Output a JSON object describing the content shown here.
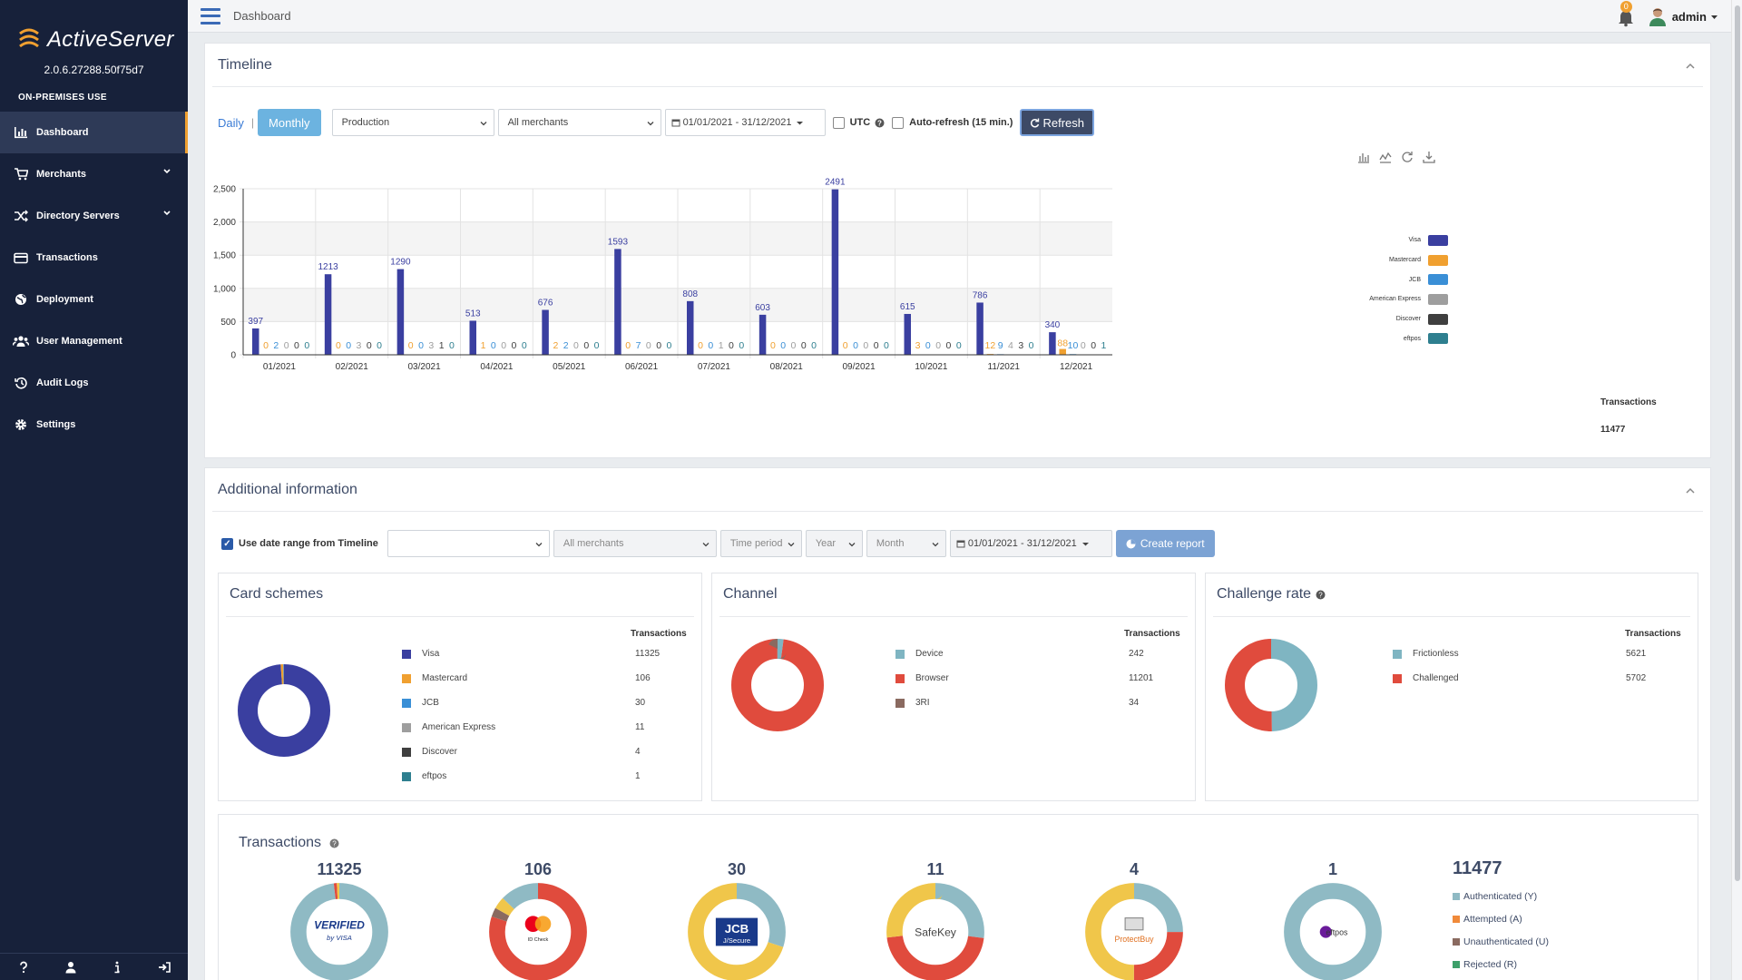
{
  "app": {
    "name": "ActiveServer",
    "version": "2.0.6.27288.50f75d7",
    "license": "ON-PREMISES USE"
  },
  "nav": [
    {
      "label": "Dashboard",
      "icon": "bar-chart-icon",
      "active": true
    },
    {
      "label": "Merchants",
      "icon": "cart-icon",
      "expandable": true
    },
    {
      "label": "Directory Servers",
      "icon": "shuffle-icon",
      "expandable": true
    },
    {
      "label": "Transactions",
      "icon": "credit-card-icon"
    },
    {
      "label": "Deployment",
      "icon": "globe-icon"
    },
    {
      "label": "User Management",
      "icon": "users-icon"
    },
    {
      "label": "Audit Logs",
      "icon": "history-icon"
    },
    {
      "label": "Settings",
      "icon": "gear-icon"
    }
  ],
  "footer_icons": [
    "help-icon",
    "user-icon",
    "info-icon",
    "logout-icon"
  ],
  "topbar": {
    "title": "Dashboard",
    "notifications": "0",
    "user": "admin"
  },
  "timeline": {
    "title": "Timeline",
    "daily": "Daily",
    "separator": "|",
    "monthly": "Monthly",
    "environment": "Production",
    "merchants": "All merchants",
    "date_range": "01/01/2021 - 31/12/2021",
    "utc_label": "UTC",
    "autorefresh_label": "Auto-refresh (15 min.)",
    "refresh_label": "Refresh",
    "transactions_label": "Transactions",
    "transactions_total": "11477"
  },
  "chart_data": {
    "type": "bar",
    "categories": [
      "01/2021",
      "02/2021",
      "03/2021",
      "04/2021",
      "05/2021",
      "06/2021",
      "07/2021",
      "08/2021",
      "09/2021",
      "10/2021",
      "11/2021",
      "12/2021"
    ],
    "series": [
      {
        "name": "Visa",
        "color": "#3a3fa0",
        "values": [
          397,
          1213,
          1290,
          513,
          676,
          1593,
          808,
          603,
          2491,
          615,
          786,
          340
        ]
      },
      {
        "name": "Mastercard",
        "color": "#f0a030",
        "values": [
          0,
          0,
          0,
          1,
          2,
          0,
          0,
          0,
          0,
          3,
          12,
          88
        ]
      },
      {
        "name": "JCB",
        "color": "#3a8fd6",
        "values": [
          2,
          0,
          0,
          0,
          2,
          7,
          0,
          0,
          0,
          0,
          9,
          10
        ]
      },
      {
        "name": "American Express",
        "color": "#9e9e9e",
        "values": [
          0,
          3,
          3,
          0,
          0,
          0,
          1,
          0,
          0,
          0,
          4,
          0
        ]
      },
      {
        "name": "Discover",
        "color": "#3f3f3f",
        "values": [
          0,
          0,
          1,
          0,
          0,
          0,
          0,
          0,
          0,
          0,
          3,
          0
        ]
      },
      {
        "name": "eftpos",
        "color": "#2e7f8f",
        "values": [
          0,
          0,
          0,
          0,
          0,
          0,
          0,
          0,
          0,
          0,
          0,
          1
        ]
      }
    ],
    "yticks": [
      "0",
      "500",
      "1,000",
      "1,500",
      "2,000",
      "2,500"
    ],
    "ylim": [
      0,
      2500
    ],
    "grid": true,
    "legend": "right"
  },
  "additional": {
    "title": "Additional information",
    "use_range_label": "Use date range from Timeline",
    "environment": "",
    "merchants": "All merchants",
    "time_period": "Time period",
    "year": "Year",
    "month": "Month",
    "date_range": "01/01/2021 - 31/12/2021",
    "create_label": "Create report"
  },
  "card_schemes": {
    "title": "Card schemes",
    "header": "Transactions",
    "rows": [
      {
        "label": "Visa",
        "value": "11325",
        "color": "#3a3fa0"
      },
      {
        "label": "Mastercard",
        "value": "106",
        "color": "#f0a030"
      },
      {
        "label": "JCB",
        "value": "30",
        "color": "#3a8fd6"
      },
      {
        "label": "American Express",
        "value": "11",
        "color": "#9e9e9e"
      },
      {
        "label": "Discover",
        "value": "4",
        "color": "#3f3f3f"
      },
      {
        "label": "eftpos",
        "value": "1",
        "color": "#2e7f8f"
      }
    ]
  },
  "channel": {
    "title": "Channel",
    "header": "Transactions",
    "rows": [
      {
        "label": "Device",
        "value": "242",
        "color": "#7fb5c2"
      },
      {
        "label": "Browser",
        "value": "11201",
        "color": "#e04b3d"
      },
      {
        "label": "3RI",
        "value": "34",
        "color": "#8a6a60"
      }
    ]
  },
  "challenge": {
    "title": "Challenge rate",
    "header": "Transactions",
    "rows": [
      {
        "label": "Frictionless",
        "value": "5621",
        "color": "#7fb5c2"
      },
      {
        "label": "Challenged",
        "value": "5702",
        "color": "#e04b3d"
      }
    ]
  },
  "transactions": {
    "title": "Transactions",
    "total": "11477",
    "schemes": [
      {
        "count": "11325",
        "logo": "verified-by-visa-logo",
        "segments": [
          {
            "color": "#8fbac4",
            "pct": 98
          },
          {
            "color": "#e04b3d",
            "pct": 1
          },
          {
            "color": "#f0c64a",
            "pct": 1
          }
        ]
      },
      {
        "count": "106",
        "logo": "mastercard-id-check-logo",
        "segments": [
          {
            "color": "#e04b3d",
            "pct": 80
          },
          {
            "color": "#8a6a60",
            "pct": 3
          },
          {
            "color": "#f0c64a",
            "pct": 4
          },
          {
            "color": "#8fbac4",
            "pct": 13
          }
        ]
      },
      {
        "count": "30",
        "logo": "jcb-secure-logo",
        "segments": [
          {
            "color": "#8fbac4",
            "pct": 30
          },
          {
            "color": "#f0c64a",
            "pct": 70
          }
        ]
      },
      {
        "count": "11",
        "logo": "amex-safekey-logo",
        "segments": [
          {
            "color": "#8fbac4",
            "pct": 27
          },
          {
            "color": "#e04b3d",
            "pct": 46
          },
          {
            "color": "#f0c64a",
            "pct": 27
          }
        ]
      },
      {
        "count": "4",
        "logo": "discover-protectbuy-logo",
        "segments": [
          {
            "color": "#8fbac4",
            "pct": 25
          },
          {
            "color": "#e04b3d",
            "pct": 25
          },
          {
            "color": "#f0c64a",
            "pct": 50
          }
        ]
      },
      {
        "count": "1",
        "logo": "eftpos-logo",
        "segments": [
          {
            "color": "#8fbac4",
            "pct": 100
          }
        ]
      }
    ],
    "legend": [
      {
        "label": "Authenticated (Y)",
        "color": "#8fbac4"
      },
      {
        "label": "Attempted (A)",
        "color": "#f08a3a"
      },
      {
        "label": "Unauthenticated (U)",
        "color": "#8a6a60"
      },
      {
        "label": "Rejected (R)",
        "color": "#3da06a"
      }
    ]
  }
}
